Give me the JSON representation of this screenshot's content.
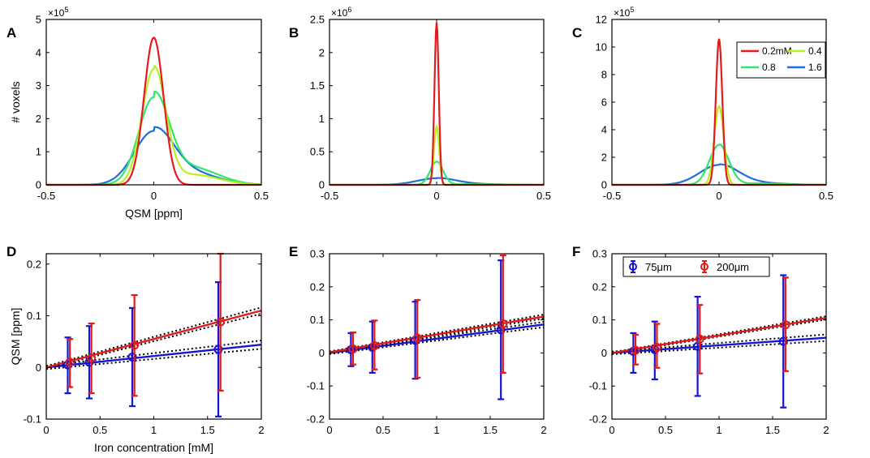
{
  "figure": {
    "panel_letters": [
      "A",
      "B",
      "C",
      "D",
      "E",
      "F"
    ],
    "colors": {
      "conc_0_2": "#e41a1c",
      "conc_0_4": "#b8f026",
      "conc_0_8": "#2fe86e",
      "conc_1_6": "#1f6fd9",
      "res_75": "#1414d6",
      "res_200": "#e31a1a",
      "ci": "#000000"
    }
  },
  "chart_data": [
    {
      "panel": "A",
      "type": "line",
      "title": "",
      "xlabel": "QSM [ppm]",
      "ylabel": "# voxels",
      "xlim": [
        -0.5,
        0.5
      ],
      "ylim": [
        0,
        5
      ],
      "y_exponent": "×10^5",
      "exponent_base": "×10",
      "exponent_power": "5",
      "xticks": [
        "-0.5",
        "0",
        "0.5"
      ],
      "yticks": [
        "0",
        "1",
        "2",
        "3",
        "4",
        "5"
      ],
      "series": [
        {
          "name": "0.2mM",
          "peak": 4.45,
          "width": 0.045,
          "tail": 0
        },
        {
          "name": "0.4",
          "peak": 3.5,
          "width": 0.055,
          "tail": 0.25
        },
        {
          "name": "0.8",
          "peak": 2.65,
          "width": 0.07,
          "tail": 0.55
        },
        {
          "name": "1.6",
          "peak": 1.63,
          "width": 0.09,
          "tail": 0.6
        }
      ]
    },
    {
      "panel": "B",
      "type": "line",
      "title": "",
      "xlabel": "",
      "ylabel": "",
      "xlim": [
        -0.5,
        0.5
      ],
      "ylim": [
        0,
        2.5
      ],
      "y_exponent": "×10^6",
      "exponent_base": "×10",
      "exponent_power": "6",
      "xticks": [
        "-0.5",
        "0",
        "0.5"
      ],
      "yticks": [
        "0",
        "0.5",
        "1",
        "1.5",
        "2",
        "2.5"
      ],
      "series": [
        {
          "name": "0.2mM",
          "peak": 2.45,
          "width": 0.01,
          "tail": 0
        },
        {
          "name": "0.4",
          "peak": 0.88,
          "width": 0.012,
          "tail": 0
        },
        {
          "name": "0.8",
          "peak": 0.35,
          "width": 0.03,
          "tail": 0.08
        },
        {
          "name": "1.6",
          "peak": 0.1,
          "width": 0.09,
          "tail": 0.3
        }
      ]
    },
    {
      "panel": "C",
      "type": "line",
      "title": "",
      "xlabel": "",
      "ylabel": "",
      "xlim": [
        -0.5,
        0.5
      ],
      "ylim": [
        0,
        12
      ],
      "y_exponent": "×10^5",
      "exponent_base": "×10",
      "exponent_power": "5",
      "xticks": [
        "-0.5",
        "0",
        "0.5"
      ],
      "yticks": [
        "0",
        "2",
        "4",
        "6",
        "8",
        "10",
        "12"
      ],
      "series": [
        {
          "name": "0.2mM",
          "peak": 10.6,
          "width": 0.015,
          "tail": 0
        },
        {
          "name": "0.4",
          "peak": 5.7,
          "width": 0.022,
          "tail": 0
        },
        {
          "name": "0.8",
          "peak": 2.9,
          "width": 0.045,
          "tail": 0.1
        },
        {
          "name": "1.6",
          "peak": 1.45,
          "width": 0.09,
          "tail": 0.25
        }
      ],
      "legend": {
        "position": "top-right",
        "entries": [
          "0.2mM",
          "0.4",
          "0.8",
          "1.6"
        ]
      }
    },
    {
      "panel": "D",
      "type": "scatter",
      "title": "",
      "xlabel": "Iron concentration [mM]",
      "ylabel": "QSM [ppm]",
      "xlim": [
        0,
        2
      ],
      "ylim": [
        -0.1,
        0.22
      ],
      "xticks": [
        "0",
        "0.5",
        "1",
        "1.5",
        "2"
      ],
      "yticks": [
        "-0.1",
        "0",
        "0.1",
        "0.2"
      ],
      "series": [
        {
          "name": "75μm",
          "points": [
            {
              "x": 0.2,
              "y": 0.005,
              "lo": -0.05,
              "hi": 0.058
            },
            {
              "x": 0.4,
              "y": 0.01,
              "lo": -0.06,
              "hi": 0.08
            },
            {
              "x": 0.8,
              "y": 0.02,
              "lo": -0.075,
              "hi": 0.115
            },
            {
              "x": 1.6,
              "y": 0.035,
              "lo": -0.095,
              "hi": 0.165
            }
          ],
          "fit": {
            "slope": 0.022,
            "intercept": 0.0
          },
          "ci": 0.008
        },
        {
          "name": "200μm",
          "points": [
            {
              "x": 0.22,
              "y": 0.01,
              "lo": -0.038,
              "hi": 0.055
            },
            {
              "x": 0.42,
              "y": 0.018,
              "lo": -0.05,
              "hi": 0.085
            },
            {
              "x": 0.82,
              "y": 0.043,
              "lo": -0.055,
              "hi": 0.14
            },
            {
              "x": 1.62,
              "y": 0.088,
              "lo": -0.045,
              "hi": 0.22
            }
          ],
          "fit": {
            "slope": 0.055,
            "intercept": 0.0
          },
          "ci": 0.006
        }
      ]
    },
    {
      "panel": "E",
      "type": "scatter",
      "title": "",
      "xlabel": "",
      "ylabel": "",
      "xlim": [
        0,
        2
      ],
      "ylim": [
        -0.2,
        0.3
      ],
      "xticks": [
        "0",
        "0.5",
        "1",
        "1.5",
        "2"
      ],
      "yticks": [
        "-0.2",
        "-0.1",
        "0",
        "0.1",
        "0.2",
        "0.3"
      ],
      "series": [
        {
          "name": "75μm",
          "points": [
            {
              "x": 0.2,
              "y": 0.01,
              "lo": -0.04,
              "hi": 0.06
            },
            {
              "x": 0.4,
              "y": 0.017,
              "lo": -0.06,
              "hi": 0.095
            },
            {
              "x": 0.8,
              "y": 0.038,
              "lo": -0.078,
              "hi": 0.155
            },
            {
              "x": 1.6,
              "y": 0.07,
              "lo": -0.14,
              "hi": 0.28
            }
          ],
          "fit": {
            "slope": 0.043,
            "intercept": 0.0
          },
          "ci": 0.008
        },
        {
          "name": "200μm",
          "points": [
            {
              "x": 0.22,
              "y": 0.012,
              "lo": -0.035,
              "hi": 0.062
            },
            {
              "x": 0.42,
              "y": 0.022,
              "lo": -0.05,
              "hi": 0.098
            },
            {
              "x": 0.82,
              "y": 0.045,
              "lo": -0.075,
              "hi": 0.16
            },
            {
              "x": 1.62,
              "y": 0.088,
              "lo": -0.06,
              "hi": 0.295
            }
          ],
          "fit": {
            "slope": 0.054,
            "intercept": 0.002
          },
          "ci": 0.006
        }
      ]
    },
    {
      "panel": "F",
      "type": "scatter",
      "title": "",
      "xlabel": "",
      "ylabel": "",
      "xlim": [
        0,
        2
      ],
      "ylim": [
        -0.2,
        0.3
      ],
      "xticks": [
        "0",
        "0.5",
        "1",
        "1.5",
        "2"
      ],
      "yticks": [
        "-0.2",
        "-0.1",
        "0",
        "0.1",
        "0.2",
        "0.3"
      ],
      "legend": {
        "position": "top",
        "entries": [
          "75μm",
          "200μm"
        ]
      },
      "series": [
        {
          "name": "75μm",
          "points": [
            {
              "x": 0.2,
              "y": 0.005,
              "lo": -0.06,
              "hi": 0.06
            },
            {
              "x": 0.4,
              "y": 0.01,
              "lo": -0.08,
              "hi": 0.095
            },
            {
              "x": 0.8,
              "y": 0.02,
              "lo": -0.13,
              "hi": 0.17
            },
            {
              "x": 1.6,
              "y": 0.035,
              "lo": -0.165,
              "hi": 0.235
            }
          ],
          "fit": {
            "slope": 0.023,
            "intercept": 0.0
          },
          "ci": 0.01
        },
        {
          "name": "200μm",
          "points": [
            {
              "x": 0.22,
              "y": 0.008,
              "lo": -0.035,
              "hi": 0.055
            },
            {
              "x": 0.42,
              "y": 0.017,
              "lo": -0.045,
              "hi": 0.088
            },
            {
              "x": 0.82,
              "y": 0.042,
              "lo": -0.062,
              "hi": 0.145
            },
            {
              "x": 1.62,
              "y": 0.085,
              "lo": -0.055,
              "hi": 0.228
            }
          ],
          "fit": {
            "slope": 0.053,
            "intercept": 0.0
          },
          "ci": 0.005
        }
      ]
    }
  ]
}
